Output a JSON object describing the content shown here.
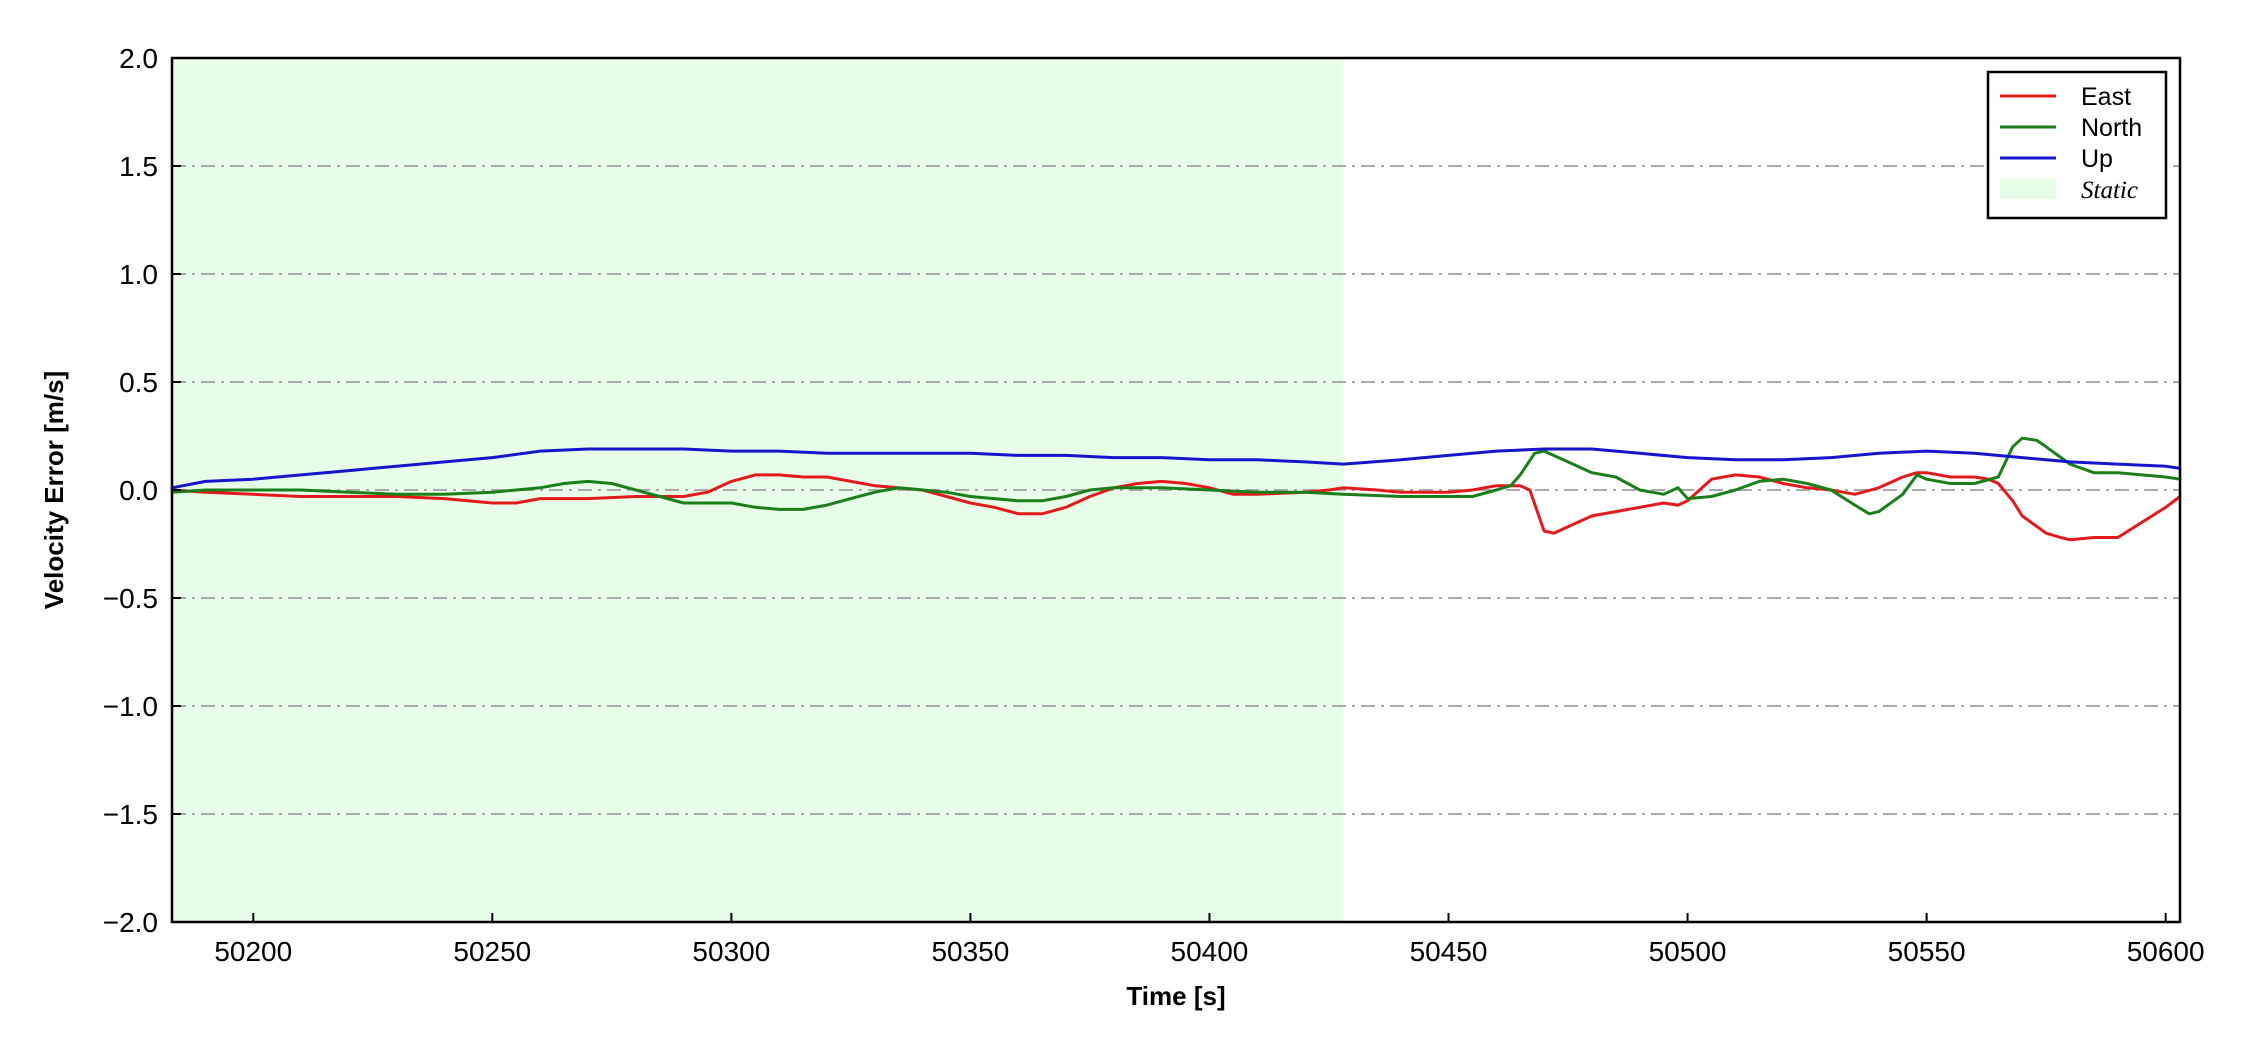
{
  "chart_data": {
    "type": "line",
    "xlabel": "Time [s]",
    "ylabel": "Velocity Error [m/s]",
    "xlim": [
      50183,
      50603
    ],
    "ylim": [
      -2.0,
      2.0
    ],
    "x_ticks": [
      50200,
      50250,
      50300,
      50350,
      50400,
      50450,
      50500,
      50550,
      50600
    ],
    "x_tick_labels": [
      "50200",
      "50250",
      "50300",
      "50350",
      "50400",
      "50450",
      "50500",
      "50550",
      "50600"
    ],
    "y_ticks": [
      -2.0,
      -1.5,
      -1.0,
      -0.5,
      0.0,
      0.5,
      1.0,
      1.5,
      2.0
    ],
    "y_tick_labels": [
      "−2.0",
      "−1.5",
      "−1.0",
      "−0.5",
      "0.0",
      "0.5",
      "1.0",
      "1.5",
      "2.0"
    ],
    "grid": "horizontal dash-dot",
    "legend_position": "top-right",
    "shaded_regions": [
      {
        "name": "Static",
        "x_start": 50183,
        "x_end": 50428,
        "color": "#e8fde8"
      }
    ],
    "series": [
      {
        "name": "East",
        "color": "#e31a1c",
        "x": [
          50183,
          50190,
          50200,
          50210,
          50220,
          50230,
          50240,
          50250,
          50255,
          50260,
          50270,
          50280,
          50290,
          50295,
          50300,
          50305,
          50310,
          50315,
          50320,
          50325,
          50330,
          50340,
          50350,
          50355,
          50360,
          50365,
          50370,
          50375,
          50380,
          50385,
          50390,
          50395,
          50400,
          50405,
          50410,
          50420,
          50425,
          50428,
          50435,
          50440,
          50450,
          50455,
          50460,
          50462,
          50465,
          50467,
          50470,
          50472,
          50475,
          50480,
          50485,
          50490,
          50495,
          50498,
          50500,
          50505,
          50510,
          50515,
          50520,
          50525,
          50530,
          50535,
          50540,
          50545,
          50548,
          50550,
          50555,
          50560,
          50563,
          50565,
          50568,
          50570,
          50575,
          50578,
          50580,
          50585,
          50590,
          50595,
          50600,
          50603
        ],
        "values": [
          0.0,
          -0.01,
          -0.02,
          -0.03,
          -0.03,
          -0.03,
          -0.04,
          -0.06,
          -0.06,
          -0.04,
          -0.04,
          -0.03,
          -0.03,
          -0.01,
          0.04,
          0.07,
          0.07,
          0.06,
          0.06,
          0.04,
          0.02,
          0.0,
          -0.06,
          -0.08,
          -0.11,
          -0.11,
          -0.08,
          -0.03,
          0.01,
          0.03,
          0.04,
          0.03,
          0.01,
          -0.02,
          -0.02,
          -0.01,
          0.0,
          0.01,
          0.0,
          -0.01,
          -0.01,
          0.0,
          0.02,
          0.02,
          0.02,
          0.0,
          -0.19,
          -0.2,
          -0.17,
          -0.12,
          -0.1,
          -0.08,
          -0.06,
          -0.07,
          -0.05,
          0.05,
          0.07,
          0.06,
          0.03,
          0.01,
          0.0,
          -0.02,
          0.01,
          0.06,
          0.08,
          0.08,
          0.06,
          0.06,
          0.05,
          0.03,
          -0.05,
          -0.12,
          -0.2,
          -0.22,
          -0.23,
          -0.22,
          -0.22,
          -0.15,
          -0.08,
          -0.03
        ]
      },
      {
        "name": "North",
        "color": "#1a7f1a",
        "x": [
          50183,
          50190,
          50200,
          50210,
          50220,
          50230,
          50240,
          50250,
          50255,
          50260,
          50265,
          50270,
          50275,
          50280,
          50285,
          50290,
          50300,
          50305,
          50310,
          50315,
          50320,
          50325,
          50330,
          50335,
          50340,
          50345,
          50350,
          50355,
          50360,
          50365,
          50370,
          50375,
          50380,
          50385,
          50390,
          50400,
          50410,
          50420,
          50428,
          50440,
          50450,
          50455,
          50460,
          50463,
          50465,
          50468,
          50470,
          50475,
          50480,
          50485,
          50490,
          50495,
          50498,
          50500,
          50505,
          50510,
          50515,
          50520,
          50525,
          50530,
          50535,
          50538,
          50540,
          50545,
          50548,
          50550,
          50555,
          50560,
          50565,
          50568,
          50570,
          50573,
          50575,
          50580,
          50585,
          50590,
          50595,
          50600,
          50603
        ],
        "values": [
          -0.01,
          0.0,
          0.0,
          0.0,
          -0.01,
          -0.02,
          -0.02,
          -0.01,
          0.0,
          0.01,
          0.03,
          0.04,
          0.03,
          0.0,
          -0.03,
          -0.06,
          -0.06,
          -0.08,
          -0.09,
          -0.09,
          -0.07,
          -0.04,
          -0.01,
          0.01,
          0.0,
          -0.01,
          -0.03,
          -0.04,
          -0.05,
          -0.05,
          -0.03,
          0.0,
          0.01,
          0.01,
          0.01,
          0.0,
          -0.01,
          -0.01,
          -0.02,
          -0.03,
          -0.03,
          -0.03,
          0.0,
          0.02,
          0.07,
          0.17,
          0.18,
          0.13,
          0.08,
          0.06,
          0.0,
          -0.02,
          0.01,
          -0.04,
          -0.03,
          0.0,
          0.04,
          0.05,
          0.03,
          0.0,
          -0.07,
          -0.11,
          -0.1,
          -0.02,
          0.07,
          0.05,
          0.03,
          0.03,
          0.06,
          0.2,
          0.24,
          0.23,
          0.2,
          0.12,
          0.08,
          0.08,
          0.07,
          0.06,
          0.05
        ]
      },
      {
        "name": "Up",
        "color": "#1515cc",
        "x": [
          50183,
          50190,
          50200,
          50210,
          50220,
          50230,
          50240,
          50250,
          50260,
          50270,
          50280,
          50290,
          50300,
          50310,
          50320,
          50330,
          50340,
          50350,
          50360,
          50370,
          50380,
          50390,
          50400,
          50410,
          50420,
          50428,
          50440,
          50450,
          50460,
          50470,
          50480,
          50490,
          50500,
          50510,
          50520,
          50530,
          50540,
          50550,
          50560,
          50570,
          50580,
          50590,
          50600,
          50603
        ],
        "values": [
          0.01,
          0.04,
          0.05,
          0.07,
          0.09,
          0.11,
          0.13,
          0.15,
          0.18,
          0.19,
          0.19,
          0.19,
          0.18,
          0.18,
          0.17,
          0.17,
          0.17,
          0.17,
          0.16,
          0.16,
          0.15,
          0.15,
          0.14,
          0.14,
          0.13,
          0.12,
          0.14,
          0.16,
          0.18,
          0.19,
          0.19,
          0.17,
          0.15,
          0.14,
          0.14,
          0.15,
          0.17,
          0.18,
          0.17,
          0.15,
          0.13,
          0.12,
          0.11,
          0.1
        ]
      }
    ]
  }
}
